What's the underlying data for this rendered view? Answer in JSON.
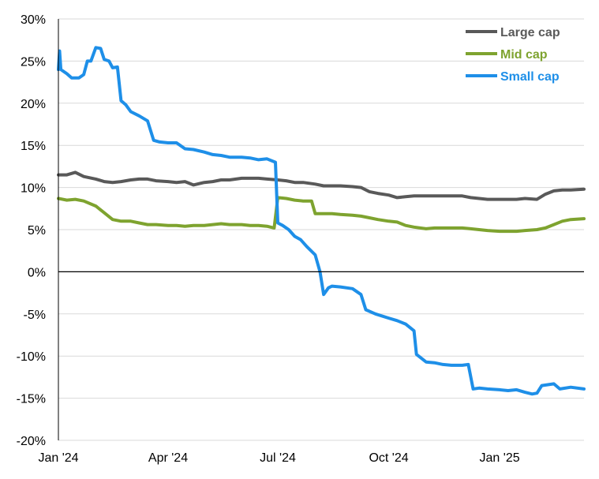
{
  "chart_data": {
    "type": "line",
    "title": "",
    "xlabel": "",
    "ylabel": "",
    "x_tick_labels": [
      "Jan '24",
      "Apr '24",
      "Jul '24",
      "Oct '24",
      "Jan '25"
    ],
    "x_tick_dates": [
      "2024-01-01",
      "2024-04-01",
      "2024-07-01",
      "2024-10-01",
      "2025-01-01"
    ],
    "xlim": [
      "2024-01-01",
      "2025-03-12"
    ],
    "ylim": [
      -20,
      30
    ],
    "y_ticks": [
      30,
      25,
      20,
      15,
      10,
      5,
      0,
      -5,
      -10,
      -15,
      -20
    ],
    "y_tick_labels": [
      "30%",
      "25%",
      "20%",
      "15%",
      "10%",
      "5%",
      "0%",
      "-5%",
      "-10%",
      "-15%",
      "-20%"
    ],
    "grid": true,
    "legend_position": "top-right",
    "series": [
      {
        "name": "Large cap",
        "color": "#595959",
        "points": [
          [
            "2024-01-01",
            11.5
          ],
          [
            "2024-01-08",
            11.5
          ],
          [
            "2024-01-15",
            11.8
          ],
          [
            "2024-01-22",
            11.3
          ],
          [
            "2024-02-01",
            11.0
          ],
          [
            "2024-02-08",
            10.7
          ],
          [
            "2024-02-15",
            10.6
          ],
          [
            "2024-02-22",
            10.7
          ],
          [
            "2024-03-01",
            10.9
          ],
          [
            "2024-03-08",
            11.0
          ],
          [
            "2024-03-15",
            11.0
          ],
          [
            "2024-03-22",
            10.8
          ],
          [
            "2024-04-01",
            10.7
          ],
          [
            "2024-04-08",
            10.6
          ],
          [
            "2024-04-15",
            10.7
          ],
          [
            "2024-04-22",
            10.3
          ],
          [
            "2024-05-01",
            10.6
          ],
          [
            "2024-05-08",
            10.7
          ],
          [
            "2024-05-15",
            10.9
          ],
          [
            "2024-05-22",
            10.9
          ],
          [
            "2024-06-01",
            11.1
          ],
          [
            "2024-06-08",
            11.1
          ],
          [
            "2024-06-15",
            11.1
          ],
          [
            "2024-06-22",
            11.0
          ],
          [
            "2024-07-01",
            10.9
          ],
          [
            "2024-07-08",
            10.8
          ],
          [
            "2024-07-15",
            10.6
          ],
          [
            "2024-07-22",
            10.6
          ],
          [
            "2024-08-01",
            10.4
          ],
          [
            "2024-08-08",
            10.2
          ],
          [
            "2024-08-15",
            10.2
          ],
          [
            "2024-08-22",
            10.2
          ],
          [
            "2024-09-01",
            10.1
          ],
          [
            "2024-09-08",
            10.0
          ],
          [
            "2024-09-15",
            9.5
          ],
          [
            "2024-09-22",
            9.3
          ],
          [
            "2024-10-01",
            9.1
          ],
          [
            "2024-10-08",
            8.8
          ],
          [
            "2024-10-15",
            8.9
          ],
          [
            "2024-10-22",
            9.0
          ],
          [
            "2024-11-01",
            9.0
          ],
          [
            "2024-11-08",
            9.0
          ],
          [
            "2024-11-15",
            9.0
          ],
          [
            "2024-11-22",
            9.0
          ],
          [
            "2024-12-01",
            9.0
          ],
          [
            "2024-12-08",
            8.8
          ],
          [
            "2024-12-15",
            8.7
          ],
          [
            "2024-12-22",
            8.6
          ],
          [
            "2025-01-01",
            8.6
          ],
          [
            "2025-01-08",
            8.6
          ],
          [
            "2025-01-15",
            8.6
          ],
          [
            "2025-01-22",
            8.7
          ],
          [
            "2025-02-01",
            8.6
          ],
          [
            "2025-02-08",
            9.2
          ],
          [
            "2025-02-15",
            9.6
          ],
          [
            "2025-02-22",
            9.7
          ],
          [
            "2025-03-01",
            9.7
          ],
          [
            "2025-03-12",
            9.8
          ]
        ]
      },
      {
        "name": "Mid cap",
        "color": "#7EA32F",
        "points": [
          [
            "2024-01-01",
            8.7
          ],
          [
            "2024-01-08",
            8.5
          ],
          [
            "2024-01-15",
            8.6
          ],
          [
            "2024-01-22",
            8.4
          ],
          [
            "2024-02-01",
            7.8
          ],
          [
            "2024-02-08",
            7.0
          ],
          [
            "2024-02-15",
            6.2
          ],
          [
            "2024-02-22",
            6.0
          ],
          [
            "2024-03-01",
            6.0
          ],
          [
            "2024-03-08",
            5.8
          ],
          [
            "2024-03-15",
            5.6
          ],
          [
            "2024-03-22",
            5.6
          ],
          [
            "2024-04-01",
            5.5
          ],
          [
            "2024-04-08",
            5.5
          ],
          [
            "2024-04-15",
            5.4
          ],
          [
            "2024-04-22",
            5.5
          ],
          [
            "2024-05-01",
            5.5
          ],
          [
            "2024-05-08",
            5.6
          ],
          [
            "2024-05-15",
            5.7
          ],
          [
            "2024-05-22",
            5.6
          ],
          [
            "2024-06-01",
            5.6
          ],
          [
            "2024-06-08",
            5.5
          ],
          [
            "2024-06-15",
            5.5
          ],
          [
            "2024-06-22",
            5.4
          ],
          [
            "2024-06-28",
            5.2
          ],
          [
            "2024-07-01",
            8.8
          ],
          [
            "2024-07-08",
            8.7
          ],
          [
            "2024-07-15",
            8.5
          ],
          [
            "2024-07-22",
            8.4
          ],
          [
            "2024-07-29",
            8.4
          ],
          [
            "2024-08-01",
            6.9
          ],
          [
            "2024-08-08",
            6.9
          ],
          [
            "2024-08-15",
            6.9
          ],
          [
            "2024-08-22",
            6.8
          ],
          [
            "2024-09-01",
            6.7
          ],
          [
            "2024-09-08",
            6.6
          ],
          [
            "2024-09-15",
            6.4
          ],
          [
            "2024-09-22",
            6.2
          ],
          [
            "2024-10-01",
            6.0
          ],
          [
            "2024-10-08",
            5.9
          ],
          [
            "2024-10-15",
            5.5
          ],
          [
            "2024-10-22",
            5.3
          ],
          [
            "2024-11-01",
            5.1
          ],
          [
            "2024-11-08",
            5.2
          ],
          [
            "2024-11-15",
            5.2
          ],
          [
            "2024-11-22",
            5.2
          ],
          [
            "2024-12-01",
            5.2
          ],
          [
            "2024-12-08",
            5.1
          ],
          [
            "2024-12-15",
            5.0
          ],
          [
            "2024-12-22",
            4.9
          ],
          [
            "2025-01-01",
            4.8
          ],
          [
            "2025-01-08",
            4.8
          ],
          [
            "2025-01-15",
            4.8
          ],
          [
            "2025-01-22",
            4.9
          ],
          [
            "2025-02-01",
            5.0
          ],
          [
            "2025-02-08",
            5.2
          ],
          [
            "2025-02-15",
            5.6
          ],
          [
            "2025-02-22",
            6.0
          ],
          [
            "2025-03-01",
            6.2
          ],
          [
            "2025-03-12",
            6.3
          ]
        ]
      },
      {
        "name": "Small cap",
        "color": "#1E8FE8",
        "points": [
          [
            "2024-01-01",
            24.0
          ],
          [
            "2024-01-02",
            26.2
          ],
          [
            "2024-01-03",
            24.0
          ],
          [
            "2024-01-08",
            23.5
          ],
          [
            "2024-01-12",
            23.0
          ],
          [
            "2024-01-18",
            23.0
          ],
          [
            "2024-01-22",
            23.4
          ],
          [
            "2024-01-25",
            25.0
          ],
          [
            "2024-01-28",
            25.0
          ],
          [
            "2024-02-01",
            26.6
          ],
          [
            "2024-02-05",
            26.5
          ],
          [
            "2024-02-08",
            25.2
          ],
          [
            "2024-02-12",
            25.0
          ],
          [
            "2024-02-15",
            24.2
          ],
          [
            "2024-02-19",
            24.3
          ],
          [
            "2024-02-22",
            20.3
          ],
          [
            "2024-02-26",
            19.8
          ],
          [
            "2024-03-01",
            19.0
          ],
          [
            "2024-03-08",
            18.5
          ],
          [
            "2024-03-15",
            17.9
          ],
          [
            "2024-03-20",
            15.6
          ],
          [
            "2024-03-25",
            15.4
          ],
          [
            "2024-04-01",
            15.3
          ],
          [
            "2024-04-08",
            15.3
          ],
          [
            "2024-04-15",
            14.6
          ],
          [
            "2024-04-22",
            14.5
          ],
          [
            "2024-05-01",
            14.2
          ],
          [
            "2024-05-08",
            13.9
          ],
          [
            "2024-05-15",
            13.8
          ],
          [
            "2024-05-22",
            13.6
          ],
          [
            "2024-06-01",
            13.6
          ],
          [
            "2024-06-08",
            13.5
          ],
          [
            "2024-06-15",
            13.3
          ],
          [
            "2024-06-22",
            13.4
          ],
          [
            "2024-06-29",
            13.0
          ],
          [
            "2024-07-01",
            5.8
          ],
          [
            "2024-07-05",
            5.5
          ],
          [
            "2024-07-10",
            5.0
          ],
          [
            "2024-07-15",
            4.2
          ],
          [
            "2024-07-20",
            3.8
          ],
          [
            "2024-07-25",
            3.0
          ],
          [
            "2024-08-01",
            2.0
          ],
          [
            "2024-08-05",
            0.0
          ],
          [
            "2024-08-08",
            -2.7
          ],
          [
            "2024-08-12",
            -1.9
          ],
          [
            "2024-08-15",
            -1.7
          ],
          [
            "2024-08-22",
            -1.8
          ],
          [
            "2024-09-01",
            -2.0
          ],
          [
            "2024-09-08",
            -2.7
          ],
          [
            "2024-09-12",
            -4.5
          ],
          [
            "2024-09-20",
            -5.0
          ],
          [
            "2024-10-01",
            -5.5
          ],
          [
            "2024-10-08",
            -5.8
          ],
          [
            "2024-10-15",
            -6.2
          ],
          [
            "2024-10-22",
            -7.0
          ],
          [
            "2024-10-24",
            -9.8
          ],
          [
            "2024-11-01",
            -10.7
          ],
          [
            "2024-11-08",
            -10.8
          ],
          [
            "2024-11-15",
            -11.0
          ],
          [
            "2024-11-22",
            -11.1
          ],
          [
            "2024-12-01",
            -11.1
          ],
          [
            "2024-12-06",
            -11.0
          ],
          [
            "2024-12-10",
            -13.9
          ],
          [
            "2024-12-15",
            -13.8
          ],
          [
            "2024-12-22",
            -13.9
          ],
          [
            "2025-01-01",
            -14.0
          ],
          [
            "2025-01-08",
            -14.1
          ],
          [
            "2025-01-15",
            -14.0
          ],
          [
            "2025-01-22",
            -14.3
          ],
          [
            "2025-01-28",
            -14.5
          ],
          [
            "2025-02-01",
            -14.4
          ],
          [
            "2025-02-05",
            -13.5
          ],
          [
            "2025-02-15",
            -13.3
          ],
          [
            "2025-02-20",
            -13.9
          ],
          [
            "2025-03-01",
            -13.7
          ],
          [
            "2025-03-12",
            -13.9
          ]
        ]
      }
    ]
  }
}
